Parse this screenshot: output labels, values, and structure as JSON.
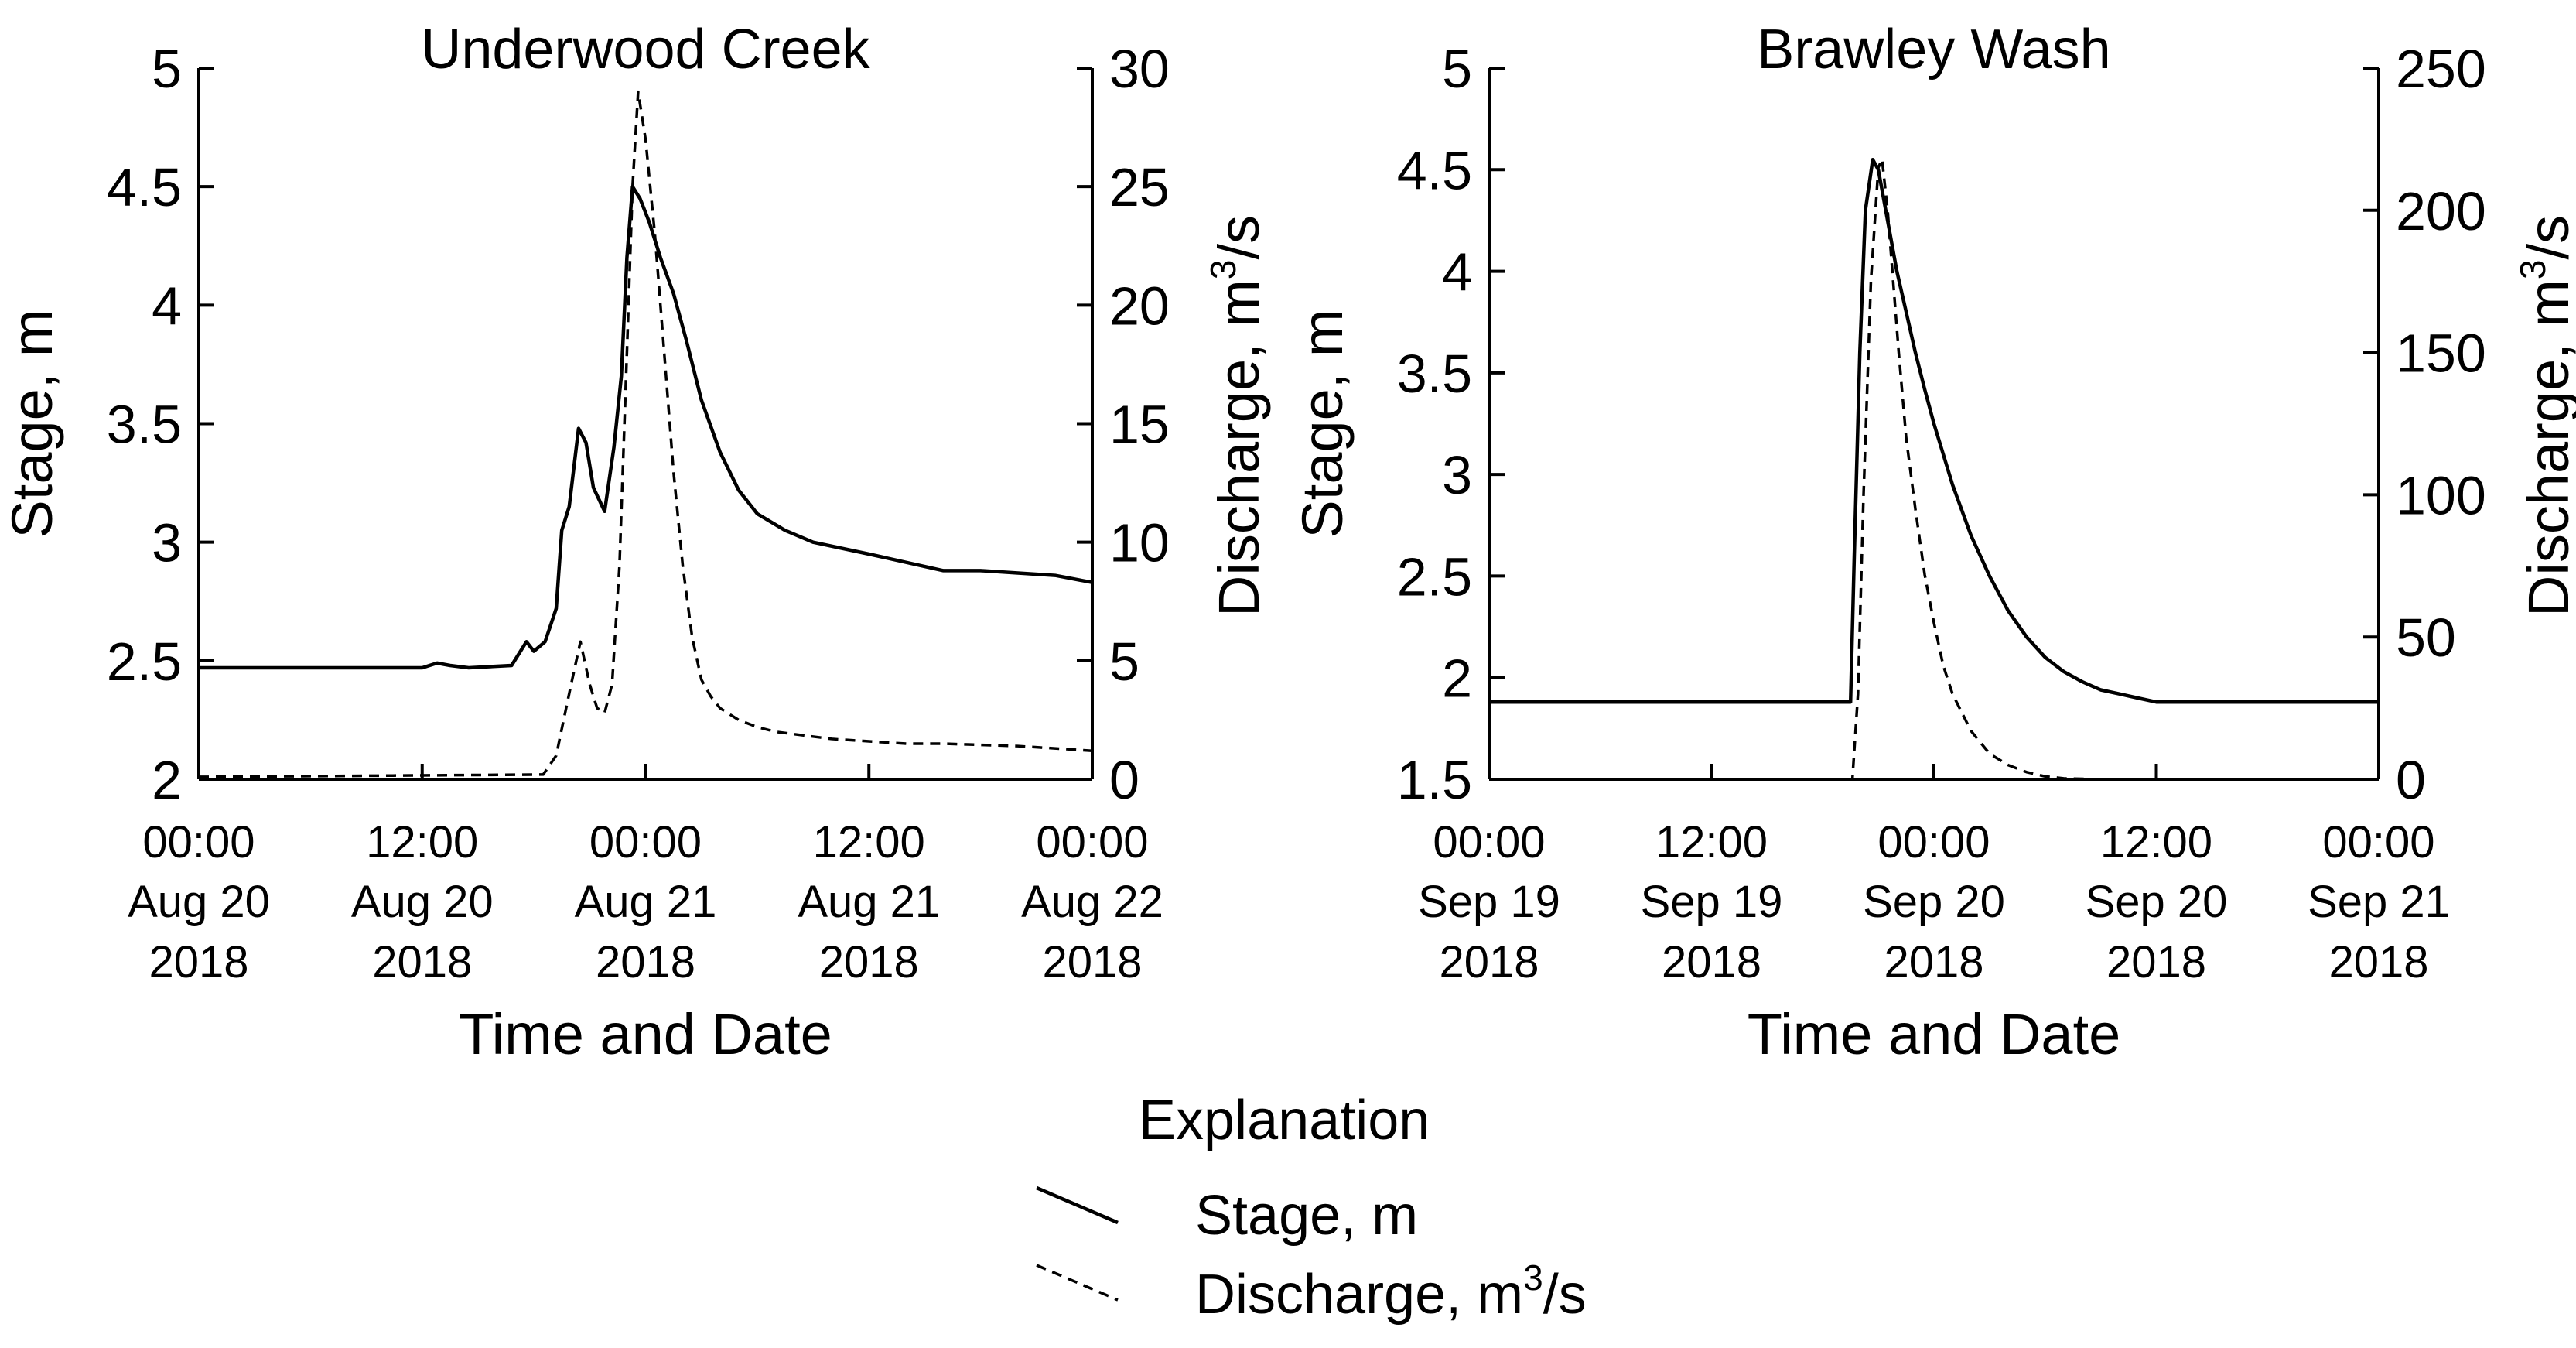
{
  "chart_data": [
    {
      "type": "line",
      "title": "Underwood Creek",
      "xlabel": "Time and Date",
      "ylabel": "Stage, m",
      "y2label_main": "Discharge, m",
      "y2label_sup": "3",
      "y2label_tail": "/s",
      "x_range_hours": [
        0,
        48
      ],
      "x_ticks": [
        {
          "hour": 0,
          "time": "00:00",
          "date": "Aug 20",
          "year": "2018"
        },
        {
          "hour": 12,
          "time": "12:00",
          "date": "Aug 20",
          "year": "2018"
        },
        {
          "hour": 24,
          "time": "00:00",
          "date": "Aug 21",
          "year": "2018"
        },
        {
          "hour": 36,
          "time": "12:00",
          "date": "Aug 21",
          "year": "2018"
        },
        {
          "hour": 48,
          "time": "00:00",
          "date": "Aug 22",
          "year": "2018"
        }
      ],
      "ylim": [
        2,
        5
      ],
      "y_ticks": [
        {
          "value": 2,
          "label": "2"
        },
        {
          "value": 2.5,
          "label": "2.5"
        },
        {
          "value": 3,
          "label": "3"
        },
        {
          "value": 3.5,
          "label": "3.5"
        },
        {
          "value": 4,
          "label": "4"
        },
        {
          "value": 4.5,
          "label": "4.5"
        },
        {
          "value": 5,
          "label": "5"
        }
      ],
      "y2lim": [
        0,
        30
      ],
      "y2_ticks": [
        {
          "value": 0,
          "label": "0"
        },
        {
          "value": 5,
          "label": "5"
        },
        {
          "value": 10,
          "label": "10"
        },
        {
          "value": 15,
          "label": "15"
        },
        {
          "value": 20,
          "label": "20"
        },
        {
          "value": 25,
          "label": "25"
        },
        {
          "value": 30,
          "label": "30"
        }
      ],
      "series": [
        {
          "name": "Stage, m",
          "axis": "left",
          "style": "solid",
          "x": [
            0,
            6,
            12,
            12.8,
            13.5,
            14.5,
            16.8,
            17.6,
            18.0,
            18.6,
            19.2,
            19.5,
            19.9,
            20.4,
            20.8,
            21.2,
            21.8,
            22.3,
            22.7,
            23.0,
            23.3,
            23.7,
            24.2,
            24.8,
            25.5,
            26.2,
            27.0,
            28.0,
            29.0,
            30.0,
            31.5,
            33.0,
            36.0,
            40.0,
            42.0,
            44.0,
            46.0,
            48.0
          ],
          "values": [
            2.47,
            2.47,
            2.47,
            2.49,
            2.48,
            2.47,
            2.48,
            2.58,
            2.54,
            2.58,
            2.72,
            3.05,
            3.15,
            3.48,
            3.42,
            3.23,
            3.13,
            3.4,
            3.7,
            4.2,
            4.5,
            4.45,
            4.35,
            4.2,
            4.05,
            3.85,
            3.6,
            3.38,
            3.22,
            3.12,
            3.05,
            3.0,
            2.95,
            2.88,
            2.88,
            2.87,
            2.86,
            2.83
          ]
        },
        {
          "name": "Discharge, m³/s",
          "axis": "right",
          "style": "dashed",
          "x": [
            0,
            18.5,
            19.2,
            19.6,
            20.0,
            20.5,
            21.0,
            21.4,
            21.8,
            22.2,
            22.6,
            23.0,
            23.3,
            23.6,
            24.0,
            24.5,
            25.0,
            25.5,
            26.0,
            26.5,
            27.0,
            27.5,
            28.0,
            29.0,
            30.0,
            31.0,
            32.0,
            34.0,
            36.0,
            38.0,
            40.0,
            44.0,
            48.0
          ],
          "values": [
            0.1,
            0.2,
            1.0,
            2.5,
            4.0,
            5.8,
            4.0,
            3.0,
            2.8,
            4.0,
            9.0,
            18.0,
            25.0,
            29.0,
            27.0,
            23.0,
            18.0,
            13.0,
            9.0,
            6.0,
            4.2,
            3.5,
            3.0,
            2.5,
            2.2,
            2.0,
            1.9,
            1.7,
            1.6,
            1.5,
            1.5,
            1.4,
            1.2
          ]
        }
      ]
    },
    {
      "type": "line",
      "title": "Brawley Wash",
      "xlabel": "Time and Date",
      "ylabel": "Stage, m",
      "y2label_main": "Discharge, m",
      "y2label_sup": "3",
      "y2label_tail": "/s",
      "x_range_hours": [
        0,
        48
      ],
      "x_ticks": [
        {
          "hour": 0,
          "time": "00:00",
          "date": "Sep 19",
          "year": "2018"
        },
        {
          "hour": 12,
          "time": "12:00",
          "date": "Sep 19",
          "year": "2018"
        },
        {
          "hour": 24,
          "time": "00:00",
          "date": "Sep 20",
          "year": "2018"
        },
        {
          "hour": 36,
          "time": "12:00",
          "date": "Sep 20",
          "year": "2018"
        },
        {
          "hour": 48,
          "time": "00:00",
          "date": "Sep 21",
          "year": "2018"
        }
      ],
      "ylim": [
        1.5,
        5
      ],
      "y_ticks": [
        {
          "value": 1.5,
          "label": "1.5"
        },
        {
          "value": 2,
          "label": "2"
        },
        {
          "value": 2.5,
          "label": "2.5"
        },
        {
          "value": 3,
          "label": "3"
        },
        {
          "value": 3.5,
          "label": "3.5"
        },
        {
          "value": 4,
          "label": "4"
        },
        {
          "value": 4.5,
          "label": "4.5"
        },
        {
          "value": 5,
          "label": "5"
        }
      ],
      "y2lim": [
        0,
        250
      ],
      "y2_ticks": [
        {
          "value": 0,
          "label": "0"
        },
        {
          "value": 50,
          "label": "50"
        },
        {
          "value": 100,
          "label": "100"
        },
        {
          "value": 150,
          "label": "150"
        },
        {
          "value": 200,
          "label": "200"
        },
        {
          "value": 250,
          "label": "250"
        }
      ],
      "series": [
        {
          "name": "Stage, m",
          "axis": "left",
          "style": "solid",
          "x": [
            0,
            10,
            19.5,
            19.7,
            20.0,
            20.3,
            20.7,
            21.0,
            21.3,
            21.6,
            22.0,
            22.5,
            23.0,
            23.5,
            24.0,
            24.5,
            25.0,
            26.0,
            27.0,
            28.0,
            29.0,
            30.0,
            31.0,
            32.0,
            33.0,
            34.0,
            35.0,
            36.0,
            40.0,
            44.0,
            48.0
          ],
          "values": [
            1.88,
            1.88,
            1.88,
            2.6,
            3.6,
            4.3,
            4.55,
            4.5,
            4.35,
            4.2,
            4.0,
            3.8,
            3.6,
            3.42,
            3.25,
            3.1,
            2.95,
            2.7,
            2.5,
            2.33,
            2.2,
            2.1,
            2.03,
            1.98,
            1.94,
            1.92,
            1.9,
            1.88,
            1.88,
            1.88,
            1.88
          ]
        },
        {
          "name": "Discharge, m³/s",
          "axis": "right",
          "style": "dashed",
          "x": [
            0,
            19.6,
            19.9,
            20.2,
            20.6,
            21.0,
            21.2,
            21.5,
            21.8,
            22.1,
            22.5,
            23.0,
            23.5,
            24.0,
            24.5,
            25.0,
            26.0,
            27.0,
            28.0,
            29.0,
            30.0,
            31.0,
            33.0,
            40.0,
            48.0
          ],
          "values": [
            0,
            0,
            30,
            100,
            175,
            215,
            218,
            200,
            175,
            150,
            120,
            95,
            72,
            55,
            40,
            30,
            17,
            9,
            5,
            2.5,
            1,
            0.3,
            0,
            0,
            0
          ]
        }
      ]
    }
  ],
  "legend": {
    "title": "Explanation",
    "stage_label": "Stage, m",
    "discharge_label_main": "Discharge, m",
    "discharge_label_sup": "3",
    "discharge_label_tail": "/s"
  }
}
